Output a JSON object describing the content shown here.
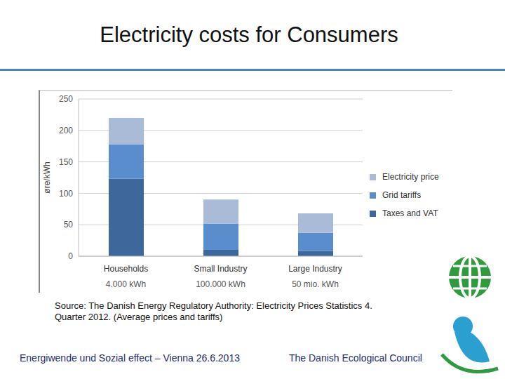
{
  "chart_data": {
    "type": "bar",
    "title": "Electricity costs for Consumers",
    "y_label": "øre/kWh",
    "categories": [
      "Households",
      "Small Industry",
      "Large Industry"
    ],
    "category_notes": [
      "4.000 kWh",
      "100.000 kWh",
      "50 mio. kWh"
    ],
    "stacked": true,
    "series": [
      {
        "name": "Taxes and VAT",
        "color": "#3e679c",
        "values": [
          123,
          10,
          8
        ]
      },
      {
        "name": "Grid tariffs",
        "color": "#5a8dcc",
        "values": [
          55,
          42,
          29
        ]
      },
      {
        "name": "Electricity price",
        "color": "#aabbd8",
        "values": [
          42,
          38,
          31
        ]
      }
    ],
    "ylim": [
      0,
      250
    ],
    "yticks": [
      0,
      50,
      100,
      150,
      200,
      250
    ],
    "grid": true,
    "legend": "right"
  },
  "slide": {
    "source": "Source: The Danish Energy Regulatory Authority: Electricity Prices Statistics 4. Quarter 2012. (Average prices and tariffs)",
    "footer_left": "Energiwende und Sozial effect – Vienna 26.6.2013",
    "footer_right": "The Danish Ecological Council"
  }
}
